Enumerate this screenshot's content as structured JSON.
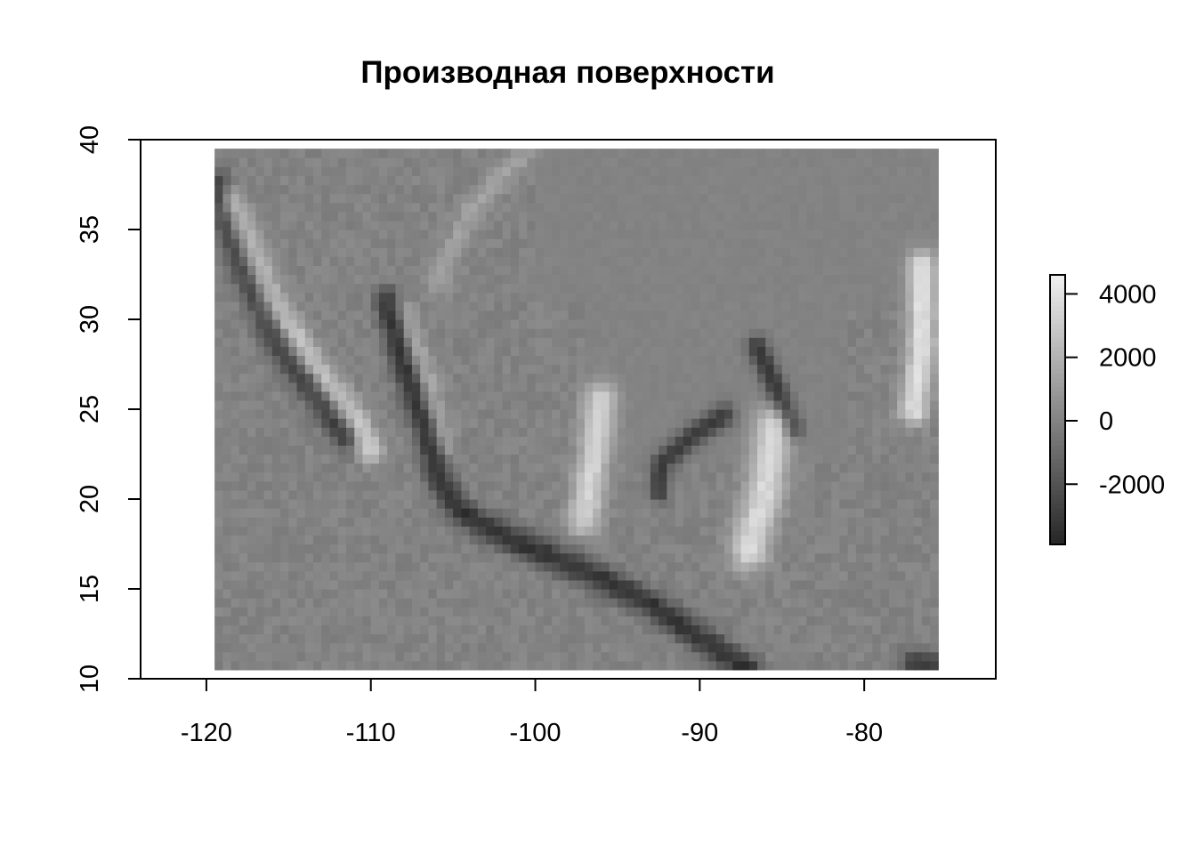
{
  "chart_data": {
    "type": "heatmap",
    "title": "Производная поверхности",
    "xlabel": "",
    "ylabel": "",
    "xlim": [
      -124,
      -72
    ],
    "ylim": [
      10,
      40
    ],
    "raster_extent": {
      "x": [
        -119.5,
        -75.5
      ],
      "y": [
        10.5,
        39.5
      ]
    },
    "colormap": "grayscale (dark = negative, light = positive)",
    "value_range": [
      -3900,
      4600
    ],
    "x_ticks": [
      -120,
      -110,
      -100,
      -90,
      -80
    ],
    "x_tick_labels": [
      "-120",
      "-110",
      "-100",
      "-90",
      "-80"
    ],
    "y_ticks": [
      10,
      15,
      20,
      25,
      30,
      35,
      40
    ],
    "y_tick_labels": [
      "10",
      "15",
      "20",
      "25",
      "30",
      "35",
      "40"
    ],
    "legend": {
      "placement": "right",
      "ticks": [
        4000,
        2000,
        0,
        -2000
      ],
      "tick_labels": [
        "4000",
        "2000",
        "0",
        "-2000"
      ]
    },
    "features": [
      {
        "kind": "ridge-dark",
        "points": [
          [
            -119.5,
            37.5
          ],
          [
            -117.5,
            32.5
          ],
          [
            -115.5,
            28.5
          ],
          [
            -113,
            25.5
          ],
          [
            -111.5,
            23.5
          ]
        ],
        "value": -3200,
        "width": 0.6
      },
      {
        "kind": "ridge-light",
        "points": [
          [
            -118.5,
            36.5
          ],
          [
            -116,
            31
          ],
          [
            -113.5,
            27.5
          ],
          [
            -111,
            24.5
          ],
          [
            -110,
            22.8
          ]
        ],
        "value": 3300,
        "width": 0.55
      },
      {
        "kind": "ridge-dark",
        "points": [
          [
            -109,
            31
          ],
          [
            -108,
            27.5
          ],
          [
            -106.5,
            23.5
          ],
          [
            -105.8,
            21
          ],
          [
            -104.5,
            19.3
          ],
          [
            -102,
            18
          ],
          [
            -99.5,
            17
          ],
          [
            -96.5,
            15.8
          ],
          [
            -93,
            14.2
          ],
          [
            -90,
            12.3
          ],
          [
            -87,
            10.5
          ]
        ],
        "value": -3400,
        "width": 0.55
      },
      {
        "kind": "ridge-light",
        "points": [
          [
            -108,
            30.5
          ],
          [
            -106.5,
            26.5
          ],
          [
            -105.5,
            23
          ]
        ],
        "value": 1800,
        "width": 0.45
      },
      {
        "kind": "ridge-light",
        "points": [
          [
            -96,
            25.5
          ],
          [
            -96.5,
            22
          ],
          [
            -97,
            19
          ]
        ],
        "value": 3400,
        "width": 0.7
      },
      {
        "kind": "ridge-dark",
        "points": [
          [
            -92.5,
            20.5
          ],
          [
            -92.3,
            22
          ],
          [
            -90.5,
            23.5
          ],
          [
            -88.5,
            24.7
          ]
        ],
        "value": -3000,
        "width": 0.45
      },
      {
        "kind": "ridge-dark",
        "points": [
          [
            -86.5,
            28.5
          ],
          [
            -85.5,
            26.5
          ],
          [
            -84.3,
            24
          ]
        ],
        "value": -3200,
        "width": 0.45
      },
      {
        "kind": "ridge-light",
        "points": [
          [
            -85.5,
            24
          ],
          [
            -86,
            20.5
          ],
          [
            -87,
            17.2
          ]
        ],
        "value": 3700,
        "width": 0.8
      },
      {
        "kind": "ridge-light",
        "points": [
          [
            -76.5,
            33
          ],
          [
            -76.5,
            28.5
          ],
          [
            -77,
            25
          ]
        ],
        "value": 4000,
        "width": 0.6
      },
      {
        "kind": "ridge-light",
        "points": [
          [
            -100.5,
            39.5
          ],
          [
            -104,
            36
          ],
          [
            -106,
            32
          ]
        ],
        "value": 1200,
        "width": 0.5
      },
      {
        "kind": "ridge-dark",
        "points": [
          [
            -77,
            11
          ],
          [
            -76,
            10.8
          ]
        ],
        "value": -3000,
        "width": 0.5
      }
    ]
  }
}
